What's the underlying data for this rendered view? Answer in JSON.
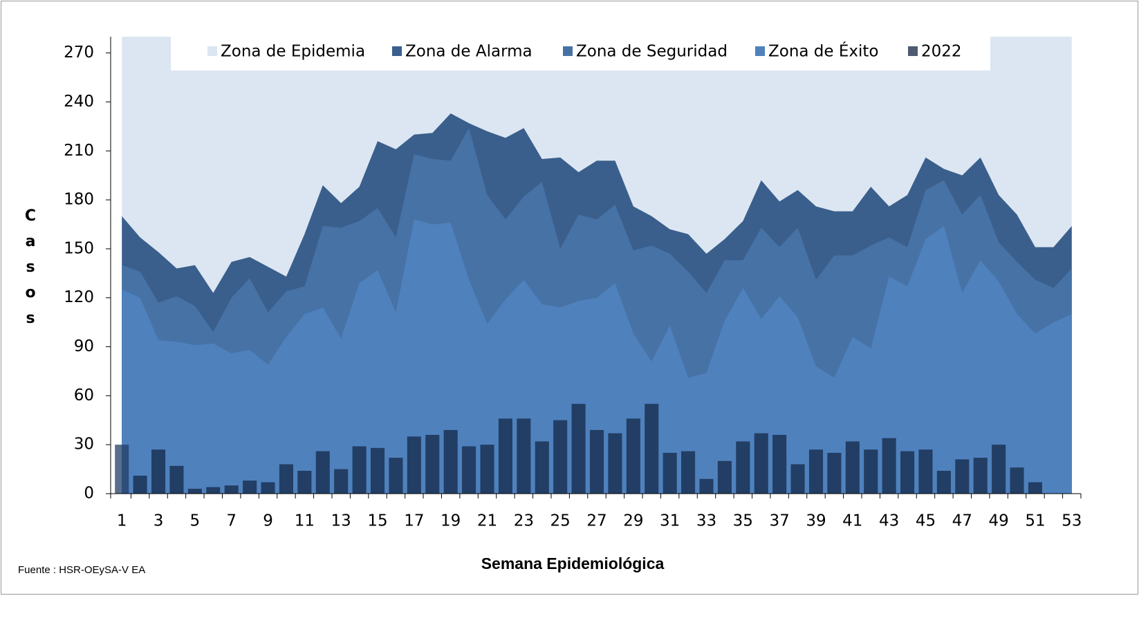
{
  "chart_data": {
    "type": "endemic-channel",
    "y_label": "Casos",
    "x_label": "Semana Epidemiológica",
    "source": "Fuente : HSR-OEySA-V EA",
    "categories": [
      1,
      null,
      3,
      null,
      5,
      null,
      7,
      null,
      9,
      null,
      11,
      null,
      13,
      null,
      15,
      null,
      17,
      null,
      19,
      null,
      21,
      null,
      23,
      null,
      25,
      null,
      27,
      null,
      29,
      null,
      31,
      null,
      33,
      null,
      35,
      null,
      37,
      null,
      39,
      null,
      41,
      null,
      43,
      null,
      45,
      null,
      47,
      null,
      49,
      null,
      51,
      null,
      53
    ],
    "ylim": [
      0,
      280
    ],
    "yticks": [
      0,
      30,
      60,
      90,
      120,
      150,
      180,
      210,
      240,
      270
    ],
    "series": [
      {
        "name": "Zona de Epidemia",
        "color": "#dce6f2",
        "kind": "zone-top"
      },
      {
        "name": "Zona de Alarma",
        "color": "#3a5f8c",
        "kind": "area",
        "values": [
          170,
          157,
          148,
          138,
          140,
          123,
          142,
          145,
          139,
          133,
          159,
          189,
          178,
          188,
          216,
          211,
          220,
          221,
          233,
          227,
          222,
          218,
          224,
          205,
          206,
          197,
          204,
          204,
          176,
          170,
          162,
          159,
          147,
          156,
          167,
          192,
          179,
          186,
          176,
          173,
          173,
          188,
          176,
          183,
          206,
          199,
          195,
          206,
          183,
          171,
          151,
          151,
          164
        ]
      },
      {
        "name": "Zona de Seguridad",
        "color": "#4672a6",
        "kind": "area",
        "values": [
          140,
          136,
          117,
          121,
          115,
          99,
          120,
          132,
          111,
          124,
          127,
          164,
          163,
          167,
          175,
          157,
          208,
          205,
          204,
          224,
          183,
          168,
          182,
          191,
          150,
          171,
          168,
          177,
          149,
          152,
          147,
          136,
          123,
          143,
          143,
          163,
          151,
          163,
          131,
          146,
          146,
          152,
          157,
          151,
          186,
          192,
          171,
          183,
          154,
          142,
          131,
          126,
          138
        ]
      },
      {
        "name": "Zona de Éxito",
        "color": "#4f81bd",
        "kind": "area",
        "values": [
          125,
          120,
          94,
          93,
          91,
          92,
          86,
          88,
          79,
          96,
          110,
          114,
          95,
          129,
          137,
          111,
          168,
          165,
          166,
          131,
          104,
          119,
          131,
          116,
          114,
          118,
          120,
          129,
          98,
          81,
          103,
          71,
          74,
          106,
          126,
          107,
          121,
          108,
          78,
          71,
          96,
          89,
          133,
          127,
          156,
          164,
          123,
          143,
          130,
          110,
          98,
          105,
          110
        ]
      },
      {
        "name": "2022",
        "color": "#223e64",
        "legend_color": "#4d5b73",
        "kind": "bar",
        "values": [
          30,
          11,
          27,
          17,
          3,
          4,
          5,
          8,
          7,
          18,
          14,
          26,
          15,
          29,
          28,
          22,
          35,
          36,
          39,
          29,
          30,
          46,
          46,
          32,
          45,
          55,
          39,
          37,
          46,
          55,
          25,
          26,
          9,
          20,
          32,
          37,
          36,
          18,
          27,
          25,
          32,
          27,
          34,
          26,
          27,
          14,
          21,
          22,
          30,
          16,
          7,
          null,
          null
        ]
      }
    ]
  }
}
